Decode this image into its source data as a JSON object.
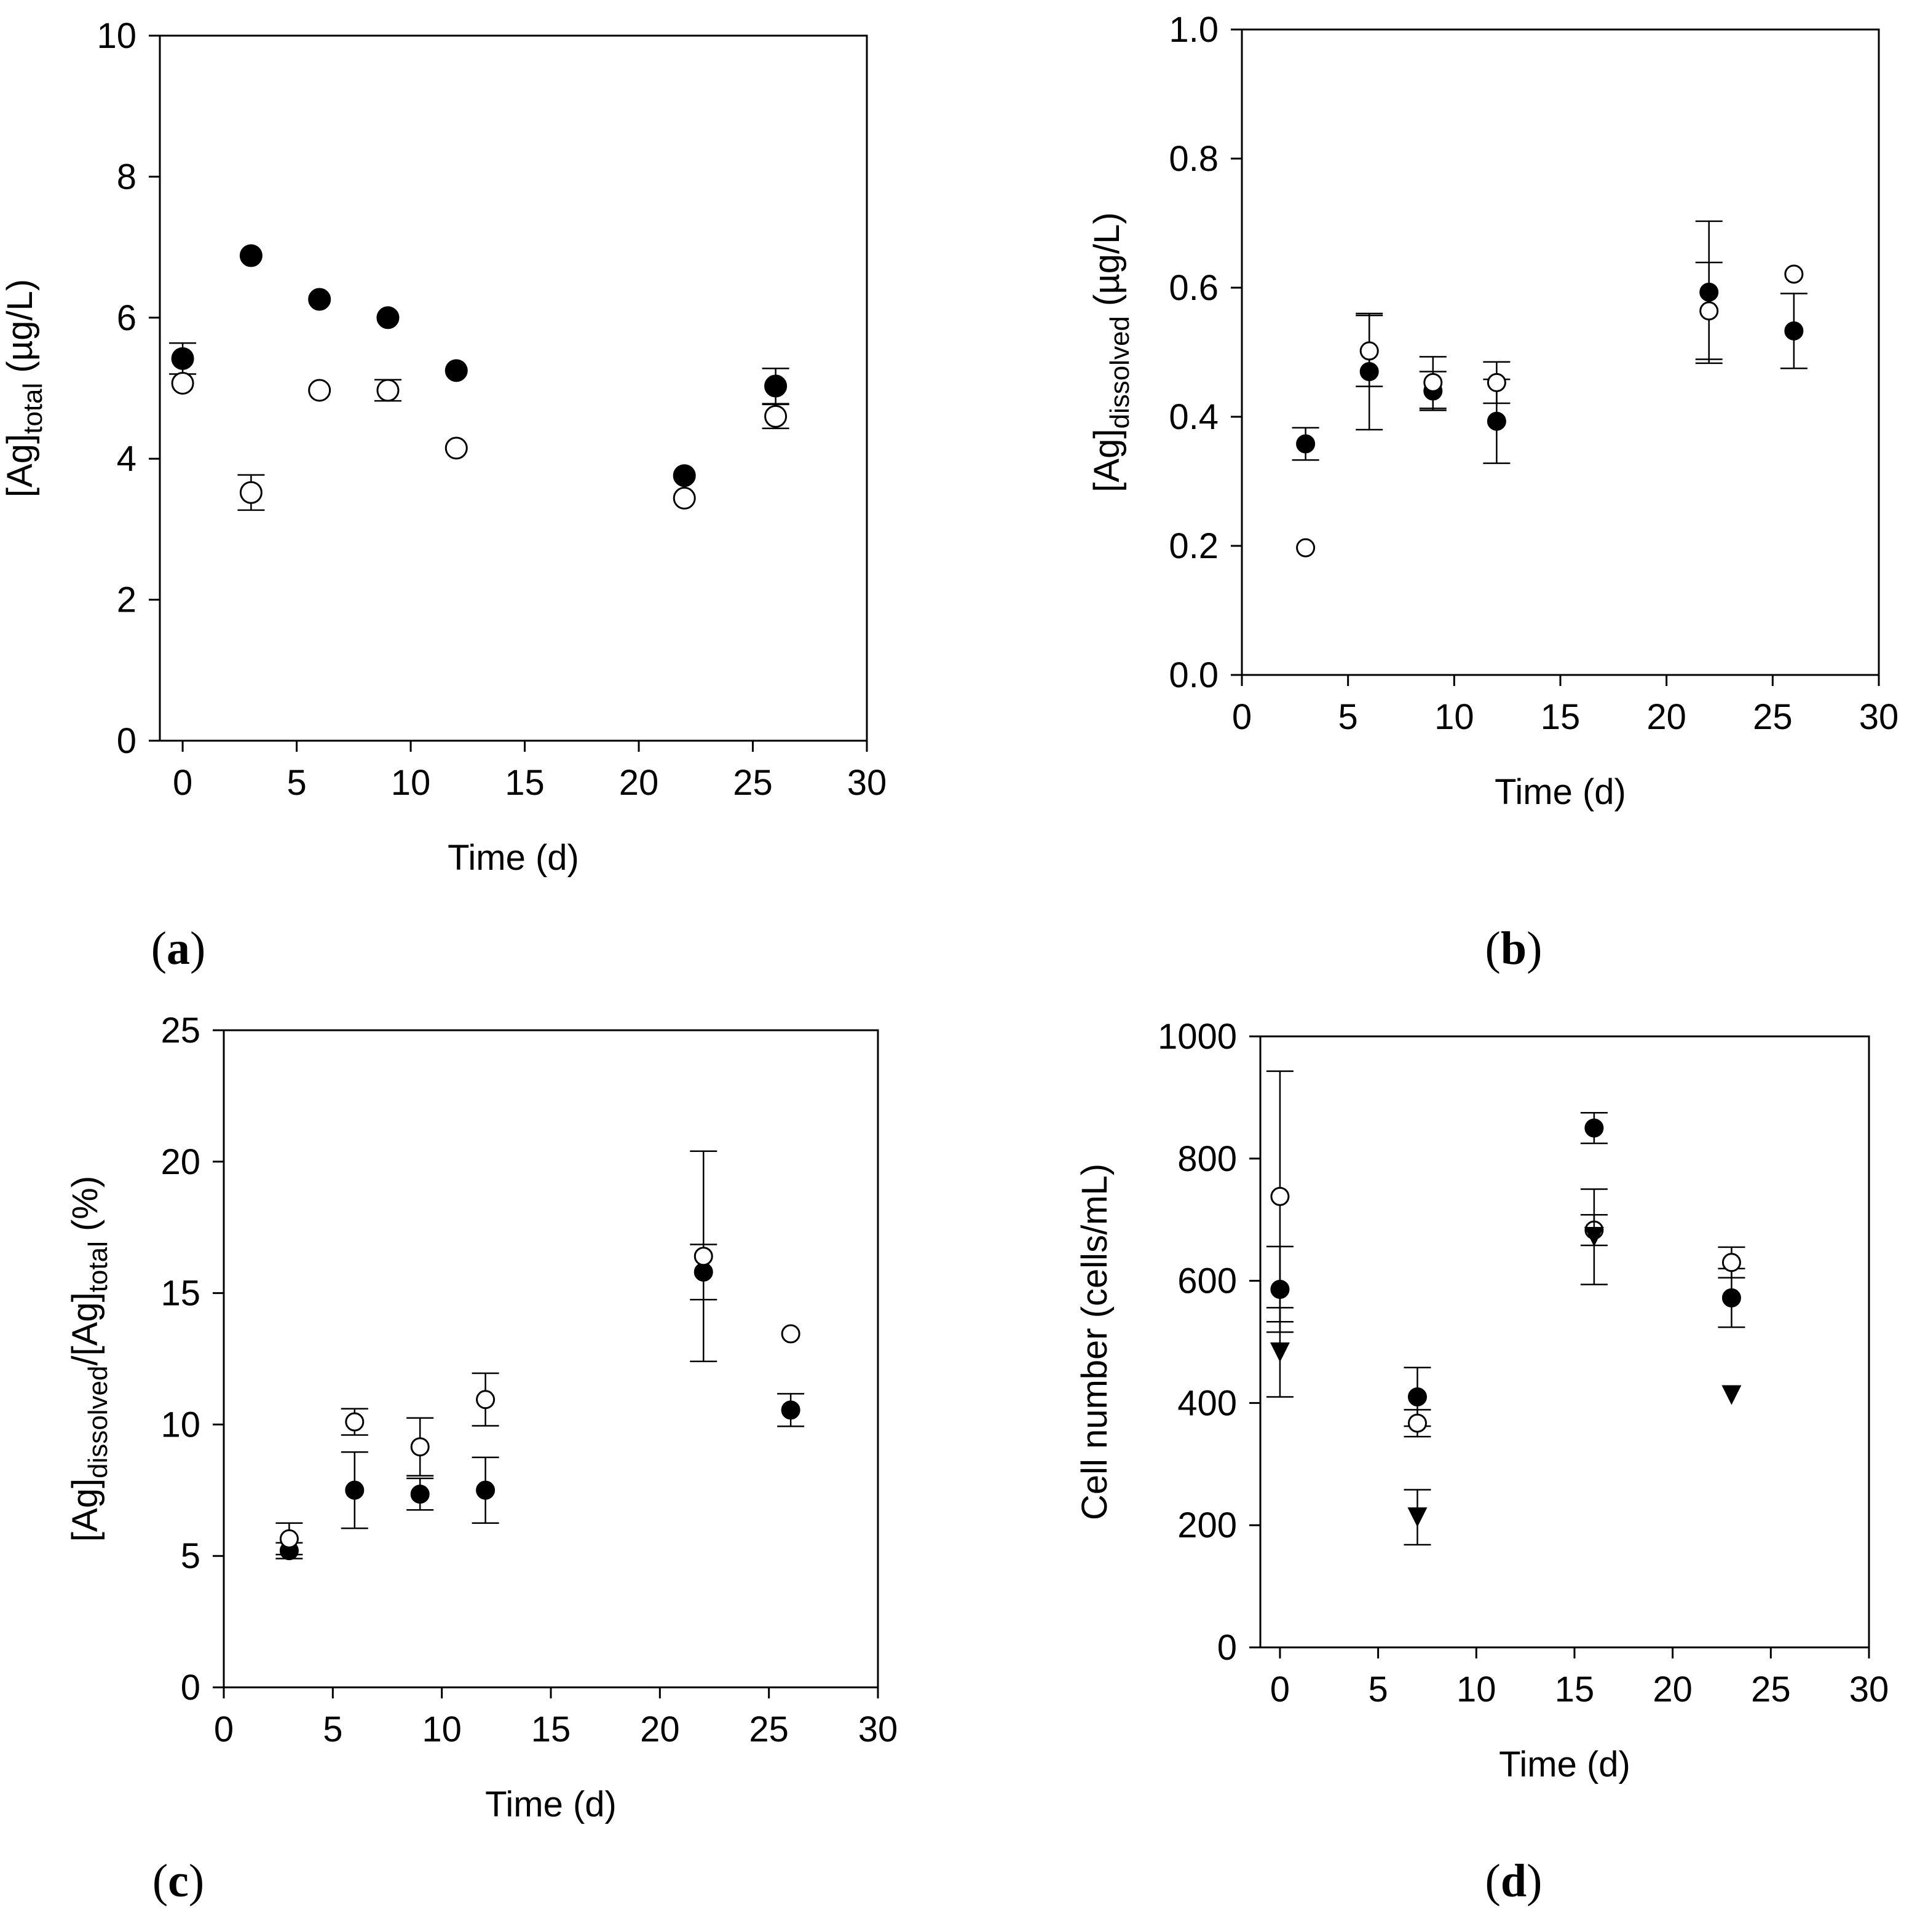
{
  "chart_data": [
    {
      "id": "a",
      "type": "scatter",
      "panel_label": "a",
      "xlabel": "Time (d)",
      "ylabel": {
        "prefix": "[Ag]",
        "sub": "total",
        "suffix": " (µg/L)"
      },
      "xlim": [
        -1,
        30
      ],
      "ylim": [
        0,
        10
      ],
      "xticks": [
        0,
        5,
        10,
        15,
        20,
        25,
        30
      ],
      "yticks": [
        0,
        2,
        4,
        6,
        8,
        10
      ],
      "series": [
        {
          "name": "filled",
          "marker": "filled-circle",
          "x": [
            0,
            3,
            6,
            9,
            12,
            22,
            26
          ],
          "y": [
            5.42,
            6.88,
            6.26,
            6.0,
            5.25,
            3.76,
            5.03
          ],
          "err": [
            0.22,
            0,
            0,
            0,
            0,
            0,
            0.25
          ]
        },
        {
          "name": "open",
          "marker": "open-circle",
          "x": [
            0,
            3,
            6,
            9,
            12,
            22,
            26
          ],
          "y": [
            5.07,
            3.52,
            4.97,
            4.97,
            4.15,
            3.44,
            4.6
          ],
          "err": [
            0,
            0.25,
            0,
            0.15,
            0,
            0,
            0.17
          ]
        }
      ]
    },
    {
      "id": "b",
      "type": "scatter",
      "panel_label": "b",
      "xlabel": "Time (d)",
      "ylabel": {
        "prefix": "[Ag]",
        "sub": "dissolved",
        "suffix": " (µg/L)"
      },
      "xlim": [
        0,
        30
      ],
      "ylim": [
        0,
        1
      ],
      "xticks": [
        0,
        5,
        10,
        15,
        20,
        25,
        30
      ],
      "yticks": [
        0.0,
        0.2,
        0.4,
        0.6,
        0.8,
        1.0
      ],
      "ytick_labels": [
        "0.0",
        "0.2",
        "0.4",
        "0.6",
        "0.8",
        "1.0"
      ],
      "series": [
        {
          "name": "filled",
          "marker": "filled-circle",
          "x": [
            3,
            6,
            9,
            12,
            22,
            26
          ],
          "y": [
            0.358,
            0.47,
            0.44,
            0.393,
            0.593,
            0.533
          ],
          "err": [
            0.025,
            0.09,
            0.03,
            0.065,
            0.11,
            0.058
          ]
        },
        {
          "name": "open",
          "marker": "open-circle",
          "x": [
            3,
            6,
            9,
            12,
            22,
            26
          ],
          "y": [
            0.197,
            0.502,
            0.453,
            0.453,
            0.564,
            0.621
          ],
          "err": [
            0,
            0.055,
            0.04,
            0.032,
            0.075,
            0
          ]
        }
      ]
    },
    {
      "id": "c",
      "type": "scatter",
      "panel_label": "c",
      "xlabel": "Time (d)",
      "ylabel": {
        "prefix": "[Ag]",
        "sub": "dissolved",
        "mid": "/[Ag]",
        "sub2": "total",
        "suffix": " (%)"
      },
      "xlim": [
        0,
        30
      ],
      "ylim": [
        0,
        25
      ],
      "xticks": [
        0,
        5,
        10,
        15,
        20,
        25,
        30
      ],
      "yticks": [
        0,
        5,
        10,
        15,
        20,
        25
      ],
      "series": [
        {
          "name": "filled",
          "marker": "filled-circle",
          "x": [
            3,
            6,
            9,
            12,
            22,
            26
          ],
          "y": [
            5.2,
            7.5,
            7.35,
            7.5,
            15.8,
            10.55
          ],
          "err": [
            0.3,
            1.45,
            0.6,
            1.25,
            1.05,
            0.62
          ]
        },
        {
          "name": "open",
          "marker": "open-circle",
          "x": [
            3,
            6,
            9,
            12,
            22,
            26
          ],
          "y": [
            5.65,
            10.1,
            9.15,
            10.95,
            16.4,
            13.45
          ],
          "err": [
            0.6,
            0.5,
            1.1,
            1.0,
            4.0,
            0
          ]
        }
      ]
    },
    {
      "id": "d",
      "type": "scatter",
      "panel_label": "d",
      "xlabel": "Time (d)",
      "ylabel": {
        "prefix": "Cell number (cells/mL)"
      },
      "xlim": [
        -1,
        30
      ],
      "ylim": [
        0,
        1000
      ],
      "xticks": [
        0,
        5,
        10,
        15,
        20,
        25,
        30
      ],
      "yticks": [
        0,
        200,
        400,
        600,
        800,
        1000
      ],
      "series": [
        {
          "name": "filled",
          "marker": "filled-circle",
          "x": [
            0,
            7,
            16,
            23
          ],
          "y": [
            586,
            410,
            850,
            572
          ],
          "err": [
            70,
            48,
            25,
            48
          ]
        },
        {
          "name": "open",
          "marker": "open-circle",
          "x": [
            0,
            7,
            16,
            23
          ],
          "y": [
            738,
            367,
            683,
            630
          ],
          "err": [
            205,
            22,
            25,
            25
          ]
        },
        {
          "name": "triangle",
          "marker": "filled-triangle-down",
          "x": [
            0,
            7,
            16,
            23
          ],
          "y": [
            483,
            213,
            672,
            413
          ],
          "err": [
            73,
            45,
            78,
            0
          ]
        }
      ]
    }
  ]
}
